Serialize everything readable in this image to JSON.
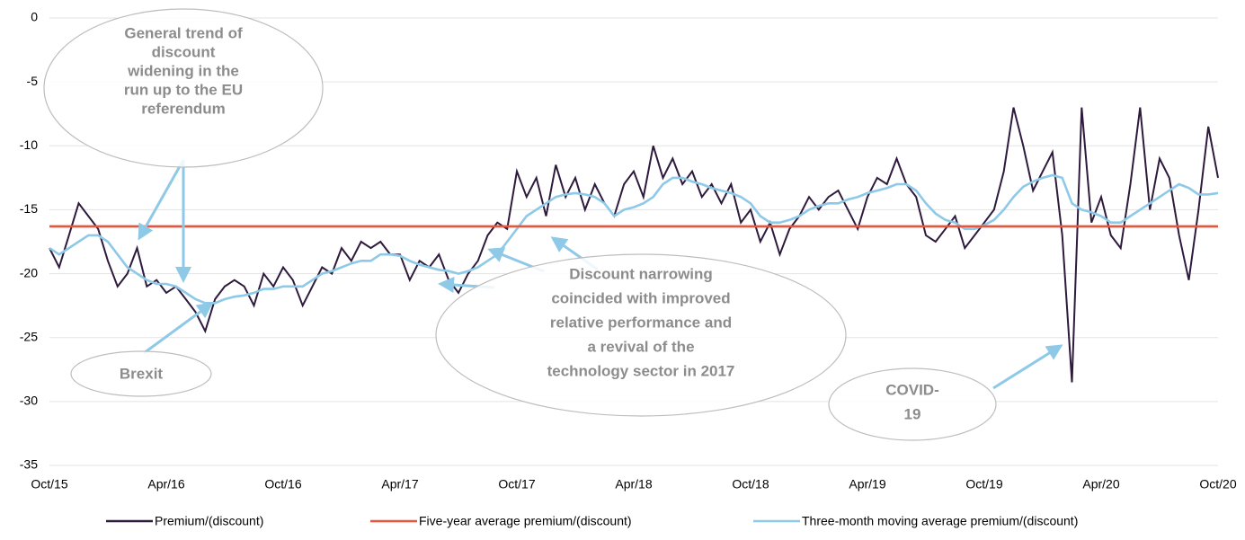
{
  "chart_data": {
    "type": "line",
    "categories": [
      "Oct/15",
      null,
      null,
      null,
      null,
      null,
      null,
      null,
      null,
      null,
      null,
      null,
      "Apr/16",
      null,
      null,
      null,
      null,
      null,
      null,
      null,
      null,
      null,
      null,
      null,
      "Oct/16",
      null,
      null,
      null,
      null,
      null,
      null,
      null,
      null,
      null,
      null,
      null,
      "Apr/17",
      null,
      null,
      null,
      null,
      null,
      null,
      null,
      null,
      null,
      null,
      null,
      "Oct/17",
      null,
      null,
      null,
      null,
      null,
      null,
      null,
      null,
      null,
      null,
      null,
      "Apr/18",
      null,
      null,
      null,
      null,
      null,
      null,
      null,
      null,
      null,
      null,
      null,
      "Oct/18",
      null,
      null,
      null,
      null,
      null,
      null,
      null,
      null,
      null,
      null,
      null,
      "Apr/19",
      null,
      null,
      null,
      null,
      null,
      null,
      null,
      null,
      null,
      null,
      null,
      "Oct/19",
      null,
      null,
      null,
      null,
      null,
      null,
      null,
      null,
      null,
      null,
      null,
      "Apr/20",
      null,
      null,
      null,
      null,
      null,
      null,
      null,
      null,
      null,
      null,
      null,
      "Oct/20"
    ],
    "series": [
      {
        "name": "Premium/(discount)",
        "color": "#2e1a3d",
        "values": [
          -18,
          -19.5,
          -17,
          -14.5,
          -15.5,
          -16.5,
          -19,
          -21,
          -20,
          -18,
          -21,
          -20.5,
          -21.5,
          -21,
          -22,
          -23,
          -24.5,
          -22,
          -21,
          -20.5,
          -21,
          -22.5,
          -20,
          -21,
          -19.5,
          -20.5,
          -22.5,
          -21,
          -19.5,
          -20,
          -18,
          -19,
          -17.5,
          -18,
          -17.5,
          -18.5,
          -18.5,
          -20.5,
          -19,
          -19.5,
          -18.5,
          -20.5,
          -21.5,
          -20,
          -19,
          -17,
          -16,
          -16.5,
          -12,
          -14,
          -12.5,
          -15.5,
          -11.5,
          -14,
          -12.5,
          -15,
          -13,
          -14.5,
          -15.5,
          -13,
          -12,
          -14,
          -10,
          -12.5,
          -11,
          -13,
          -12,
          -14,
          -13,
          -14.5,
          -13,
          -16,
          -15,
          -17.5,
          -16,
          -18.5,
          -16.5,
          -15.5,
          -14,
          -15,
          -14,
          -13.5,
          -15,
          -16.5,
          -14,
          -12.5,
          -13,
          -11,
          -13,
          -14,
          -17,
          -17.5,
          -16.5,
          -15.5,
          -18,
          -17,
          -16,
          -15,
          -12,
          -7,
          -10,
          -13.5,
          -12,
          -10.5,
          -17,
          -28.5,
          -7,
          -16,
          -14,
          -17,
          -18,
          -13,
          -7,
          -15,
          -11,
          -12.5,
          -17,
          -20.5,
          -15,
          -8.5,
          -12.5
        ]
      },
      {
        "name": "Five-year average premium/(discount)",
        "color": "#e8553e",
        "values": [
          -16.3,
          -16.3,
          -16.3,
          -16.3,
          -16.3,
          -16.3,
          -16.3,
          -16.3,
          -16.3,
          -16.3,
          -16.3,
          -16.3,
          -16.3,
          -16.3,
          -16.3,
          -16.3,
          -16.3,
          -16.3,
          -16.3,
          -16.3,
          -16.3,
          -16.3,
          -16.3,
          -16.3,
          -16.3,
          -16.3,
          -16.3,
          -16.3,
          -16.3,
          -16.3,
          -16.3,
          -16.3,
          -16.3,
          -16.3,
          -16.3,
          -16.3,
          -16.3,
          -16.3,
          -16.3,
          -16.3,
          -16.3,
          -16.3,
          -16.3,
          -16.3,
          -16.3,
          -16.3,
          -16.3,
          -16.3,
          -16.3,
          -16.3,
          -16.3,
          -16.3,
          -16.3,
          -16.3,
          -16.3,
          -16.3,
          -16.3,
          -16.3,
          -16.3,
          -16.3,
          -16.3,
          -16.3,
          -16.3,
          -16.3,
          -16.3,
          -16.3,
          -16.3,
          -16.3,
          -16.3,
          -16.3,
          -16.3,
          -16.3,
          -16.3,
          -16.3,
          -16.3,
          -16.3,
          -16.3,
          -16.3,
          -16.3,
          -16.3,
          -16.3,
          -16.3,
          -16.3,
          -16.3,
          -16.3,
          -16.3,
          -16.3,
          -16.3,
          -16.3,
          -16.3,
          -16.3,
          -16.3,
          -16.3,
          -16.3,
          -16.3,
          -16.3,
          -16.3,
          -16.3,
          -16.3,
          -16.3,
          -16.3,
          -16.3,
          -16.3,
          -16.3,
          -16.3,
          -16.3,
          -16.3,
          -16.3,
          -16.3,
          -16.3,
          -16.3,
          -16.3,
          -16.3,
          -16.3,
          -16.3,
          -16.3,
          -16.3,
          -16.3,
          -16.3,
          -16.3,
          -16.3
        ]
      },
      {
        "name": "Three-month moving average premium/(discount)",
        "color": "#8ec9e8",
        "values": [
          -18,
          -18.5,
          -18,
          -17.5,
          -17,
          -17,
          -17.5,
          -18.5,
          -19.5,
          -20,
          -20.5,
          -20.8,
          -20.8,
          -21,
          -21.5,
          -22,
          -22.3,
          -22.3,
          -22,
          -21.8,
          -21.7,
          -21.5,
          -21.2,
          -21.2,
          -21,
          -21,
          -21,
          -20.5,
          -20,
          -19.8,
          -19.5,
          -19.2,
          -19,
          -19,
          -18.5,
          -18.5,
          -18.6,
          -19,
          -19.3,
          -19.5,
          -19.7,
          -19.8,
          -20,
          -19.8,
          -19.5,
          -19,
          -18.5,
          -17.5,
          -16.5,
          -15.5,
          -15,
          -14.5,
          -14,
          -13.8,
          -13.7,
          -13.8,
          -14,
          -14.5,
          -15.5,
          -15,
          -14.8,
          -14.5,
          -14,
          -13,
          -12.5,
          -12.5,
          -12.8,
          -13,
          -13.3,
          -13.5,
          -13.7,
          -14,
          -14.5,
          -15.5,
          -16,
          -16,
          -15.8,
          -15.5,
          -15,
          -14.7,
          -14.5,
          -14.5,
          -14.2,
          -14,
          -13.7,
          -13.5,
          -13.3,
          -13,
          -13,
          -13.5,
          -14.5,
          -15.3,
          -15.8,
          -16,
          -16.5,
          -16.5,
          -16.2,
          -15.8,
          -15,
          -14,
          -13.2,
          -12.8,
          -12.5,
          -12.3,
          -12.5,
          -14.5,
          -15,
          -15.2,
          -15.5,
          -16,
          -16,
          -15.5,
          -15,
          -14.5,
          -14,
          -13.5,
          -13,
          -13.3,
          -13.8,
          -13.8,
          -13.7
        ]
      }
    ],
    "ylim": [
      -35,
      0
    ],
    "yticks": [
      0,
      -5,
      -10,
      -15,
      -20,
      -25,
      -30,
      -35
    ],
    "grid": true,
    "annotations": [
      {
        "lines": [
          "General trend of",
          "discount",
          "widening in the",
          "run up to the EU",
          "referendum"
        ]
      },
      {
        "lines": [
          "Brexit"
        ]
      },
      {
        "lines": [
          "Discount narrowing",
          "coincided with improved",
          "relative performance and",
          "a revival of the",
          "technology sector in 2017"
        ]
      },
      {
        "lines": [
          "COVID-",
          "19"
        ]
      }
    ]
  }
}
